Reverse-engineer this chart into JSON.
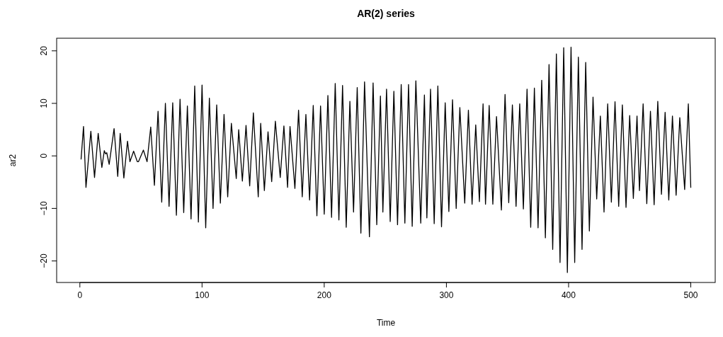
{
  "chart_data": {
    "type": "line",
    "title": "AR(2) series",
    "xlabel": "Time",
    "ylabel": "ar2",
    "xlim": [
      -19,
      520
    ],
    "xticks": [
      0,
      100,
      200,
      300,
      400,
      500
    ],
    "ylim": [
      -24.1,
      22.4
    ],
    "yticks": [
      {
        "value": -20,
        "label": "−20"
      },
      {
        "value": -10,
        "label": "−10"
      },
      0,
      10,
      20
    ],
    "x": [
      1,
      3,
      5,
      9,
      12,
      15,
      18,
      20,
      21,
      22,
      24,
      28,
      31,
      33,
      36,
      39,
      41,
      44,
      47,
      48,
      52,
      55,
      58,
      61,
      64,
      67,
      70,
      73,
      76,
      79,
      82,
      85,
      88,
      91,
      94,
      97,
      100,
      103,
      106,
      109,
      112,
      115,
      118,
      121,
      124,
      128,
      130,
      133,
      136,
      139,
      142,
      146,
      148,
      151,
      154,
      157,
      160,
      164,
      167,
      170,
      172,
      176,
      179,
      182,
      185,
      188,
      191,
      194,
      197,
      200,
      203,
      206,
      209,
      212,
      215,
      218,
      221,
      224,
      227,
      230,
      233,
      237,
      240,
      243,
      246,
      248,
      251,
      254,
      257,
      260,
      263,
      266,
      269,
      272,
      275,
      279,
      282,
      284,
      287,
      290,
      293,
      296,
      299,
      302,
      305,
      308,
      311,
      315,
      318,
      321,
      324,
      327,
      330,
      332,
      335,
      338,
      341,
      345,
      348,
      351,
      354,
      357,
      360,
      363,
      366,
      369,
      372,
      375,
      378,
      381,
      384,
      387,
      390,
      393,
      396,
      399,
      402,
      405,
      408,
      411,
      414,
      417,
      420,
      423,
      426,
      429,
      432,
      435,
      438,
      441,
      444,
      447,
      450,
      453,
      456,
      458,
      461,
      464,
      467,
      470,
      473,
      476,
      479,
      482,
      485,
      488,
      491,
      495,
      498,
      500
    ],
    "series": [
      {
        "color": "#000000",
        "values": [
          -0.6,
          5.6,
          -6.0,
          4.7,
          -4.1,
          4.3,
          -2.2,
          1.0,
          0.4,
          0.6,
          -1.6,
          5.2,
          -3.9,
          4.3,
          -4.2,
          2.8,
          -1.1,
          0.9,
          -1.1,
          -1.1,
          1.1,
          -1.1,
          5.5,
          -5.6,
          8.5,
          -8.8,
          10.0,
          -9.6,
          10.1,
          -11.3,
          10.8,
          -10.8,
          9.5,
          -12.0,
          13.3,
          -12.6,
          13.5,
          -13.7,
          11.0,
          -10.0,
          9.7,
          -9.0,
          7.9,
          -7.8,
          6.2,
          -4.3,
          5.0,
          -4.8,
          5.8,
          -5.7,
          8.2,
          -7.8,
          6.2,
          -6.6,
          4.6,
          -4.9,
          6.6,
          -4.1,
          5.7,
          -6.0,
          5.6,
          -6.2,
          8.7,
          -7.8,
          7.9,
          -8.4,
          9.6,
          -11.4,
          9.5,
          -11.1,
          11.5,
          -11.7,
          13.8,
          -12.2,
          13.4,
          -13.6,
          10.4,
          -10.7,
          13.0,
          -14.7,
          14.1,
          -15.4,
          13.9,
          -13.1,
          11.4,
          -10.7,
          12.7,
          -12.5,
          12.3,
          -13.1,
          13.6,
          -12.8,
          13.6,
          -13.4,
          14.3,
          -12.8,
          11.6,
          -11.8,
          12.7,
          -12.9,
          13.3,
          -13.5,
          10.1,
          -10.6,
          10.7,
          -10.0,
          9.2,
          -9.0,
          8.7,
          -9.2,
          5.9,
          -8.7,
          9.9,
          -9.2,
          9.6,
          -9.2,
          7.5,
          -10.3,
          11.7,
          -8.9,
          9.7,
          -9.6,
          9.9,
          -10.1,
          12.7,
          -13.6,
          12.9,
          -13.7,
          14.4,
          -15.6,
          17.4,
          -17.8,
          19.4,
          -20.3,
          20.6,
          -22.2,
          20.7,
          -20.3,
          18.8,
          -17.8,
          17.8,
          -14.3,
          11.2,
          -8.2,
          7.6,
          -10.7,
          9.9,
          -8.8,
          10.3,
          -9.6,
          9.7,
          -9.8,
          7.7,
          -8.1,
          7.6,
          -6.6,
          9.9,
          -9.1,
          8.5,
          -9.3,
          10.4,
          -7.3,
          8.3,
          -8.4,
          7.6,
          -7.5,
          7.3,
          -6.4,
          9.9,
          -6.0
        ]
      }
    ]
  }
}
